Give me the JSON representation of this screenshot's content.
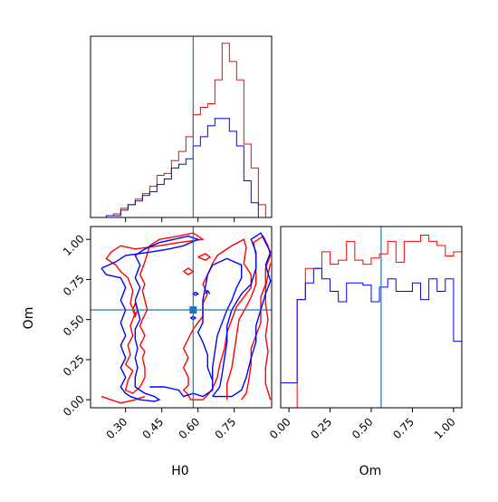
{
  "chart_data": {
    "type": "corner",
    "parameters": [
      "H0",
      "Om"
    ],
    "truth": {
      "H0": 0.58,
      "Om": 0.56
    },
    "colors": {
      "series_a": "#ff0000",
      "series_b": "#0000ff",
      "truth": "#1f77b4"
    },
    "axes": {
      "H0": {
        "xlabel": "H0",
        "ticks": [
          "0.30",
          "0.45",
          "0.60",
          "0.75"
        ],
        "tick_values": [
          0.3,
          0.45,
          0.6,
          0.75
        ],
        "xlim": [
          0.155,
          0.905
        ]
      },
      "Om": {
        "xlabel": "Om",
        "ylabel": "Om",
        "ticks": [
          "0.00",
          "0.25",
          "0.50",
          "0.75",
          "1.00"
        ],
        "tick_values": [
          0.0,
          0.25,
          0.5,
          0.75,
          1.0
        ],
        "xlim": [
          -0.05,
          1.05
        ],
        "ylim": [
          -0.05,
          1.08
        ]
      }
    },
    "histograms": {
      "H0": {
        "bin_edges": [
          0.19,
          0.22,
          0.25,
          0.28,
          0.31,
          0.34,
          0.37,
          0.4,
          0.43,
          0.46,
          0.49,
          0.52,
          0.55,
          0.58,
          0.61,
          0.64,
          0.67,
          0.7,
          0.73,
          0.76,
          0.79,
          0.82,
          0.85,
          0.88
        ],
        "series_red": [
          0,
          1,
          2,
          5,
          7,
          10,
          13,
          17,
          23,
          24,
          31,
          36,
          44,
          56,
          60,
          62,
          75,
          95,
          85,
          75,
          40,
          27,
          7
        ],
        "series_blue": [
          0,
          1,
          1,
          4,
          7,
          9,
          12,
          14,
          18,
          21,
          27,
          29,
          32,
          39,
          44,
          50,
          54,
          54,
          47,
          39,
          20,
          8,
          0
        ]
      },
      "Om": {
        "bin_edges": [
          -0.05,
          0.0,
          0.05,
          0.1,
          0.15,
          0.2,
          0.25,
          0.3,
          0.35,
          0.4,
          0.45,
          0.5,
          0.55,
          0.6,
          0.65,
          0.7,
          0.75,
          0.8,
          0.85,
          0.9,
          0.95,
          1.0,
          1.05
        ],
        "series_red": [
          0,
          0,
          52,
          67,
          67,
          75,
          69,
          71,
          80,
          71,
          69,
          72,
          74,
          80,
          70,
          80,
          80,
          83,
          80,
          78,
          73,
          75,
          0
        ],
        "series_blue": [
          12,
          12,
          52,
          60,
          67,
          62,
          56,
          51,
          60,
          60,
          59,
          51,
          58,
          62,
          56,
          56,
          60,
          52,
          62,
          56,
          62,
          32,
          12
        ]
      }
    },
    "contours": {
      "red": [
        [
          [
            0.57,
            0.0
          ],
          [
            0.56,
            0.03
          ],
          [
            0.54,
            0.06
          ],
          [
            0.56,
            0.09
          ],
          [
            0.56,
            0.14
          ],
          [
            0.54,
            0.2
          ],
          [
            0.56,
            0.26
          ],
          [
            0.54,
            0.32
          ],
          [
            0.56,
            0.38
          ],
          [
            0.58,
            0.44
          ],
          [
            0.62,
            0.52
          ],
          [
            0.62,
            0.6
          ],
          [
            0.64,
            0.66
          ],
          [
            0.62,
            0.72
          ],
          [
            0.64,
            0.78
          ],
          [
            0.66,
            0.85
          ],
          [
            0.68,
            0.9
          ],
          [
            0.74,
            0.96
          ],
          [
            0.79,
            1.0
          ],
          [
            0.8,
            0.95
          ],
          [
            0.79,
            0.85
          ],
          [
            0.82,
            0.78
          ],
          [
            0.82,
            0.7
          ],
          [
            0.79,
            0.64
          ],
          [
            0.76,
            0.58
          ],
          [
            0.74,
            0.5
          ],
          [
            0.72,
            0.42
          ],
          [
            0.71,
            0.32
          ],
          [
            0.69,
            0.22
          ],
          [
            0.68,
            0.14
          ],
          [
            0.66,
            0.07
          ],
          [
            0.64,
            0.03
          ],
          [
            0.62,
            0.0
          ],
          [
            0.57,
            0.0
          ]
        ],
        [
          [
            0.72,
            0.0
          ],
          [
            0.72,
            0.1
          ],
          [
            0.74,
            0.2
          ],
          [
            0.75,
            0.3
          ],
          [
            0.76,
            0.4
          ],
          [
            0.77,
            0.5
          ],
          [
            0.8,
            0.58
          ],
          [
            0.82,
            0.64
          ],
          [
            0.84,
            0.72
          ],
          [
            0.84,
            0.8
          ],
          [
            0.84,
            0.9
          ],
          [
            0.83,
            0.98
          ],
          [
            0.87,
            1.02
          ],
          [
            0.89,
            0.96
          ],
          [
            0.9,
            0.9
          ],
          [
            0.88,
            0.82
          ],
          [
            0.88,
            0.72
          ],
          [
            0.86,
            0.64
          ],
          [
            0.86,
            0.56
          ],
          [
            0.86,
            0.48
          ],
          [
            0.84,
            0.4
          ],
          [
            0.82,
            0.32
          ],
          [
            0.82,
            0.22
          ],
          [
            0.81,
            0.12
          ],
          [
            0.8,
            0.04
          ],
          [
            0.78,
            0.0
          ]
        ],
        [
          [
            0.9,
            0.0
          ],
          [
            0.88,
            0.1
          ],
          [
            0.88,
            0.2
          ],
          [
            0.89,
            0.3
          ],
          [
            0.88,
            0.4
          ],
          [
            0.89,
            0.5
          ],
          [
            0.88,
            0.6
          ],
          [
            0.88,
            0.7
          ],
          [
            0.89,
            0.78
          ],
          [
            0.9,
            0.85
          ]
        ],
        [
          [
            0.24,
            0.92
          ],
          [
            0.22,
            0.88
          ],
          [
            0.26,
            0.84
          ],
          [
            0.28,
            0.8
          ],
          [
            0.31,
            0.76
          ],
          [
            0.33,
            0.68
          ],
          [
            0.32,
            0.6
          ],
          [
            0.34,
            0.54
          ],
          [
            0.32,
            0.46
          ],
          [
            0.33,
            0.4
          ],
          [
            0.31,
            0.34
          ],
          [
            0.32,
            0.28
          ],
          [
            0.3,
            0.22
          ],
          [
            0.33,
            0.18
          ],
          [
            0.31,
            0.12
          ],
          [
            0.3,
            0.06
          ],
          [
            0.33,
            0.04
          ],
          [
            0.36,
            0.08
          ],
          [
            0.38,
            0.14
          ],
          [
            0.38,
            0.2
          ],
          [
            0.37,
            0.26
          ],
          [
            0.38,
            0.3
          ],
          [
            0.36,
            0.34
          ],
          [
            0.38,
            0.4
          ],
          [
            0.36,
            0.46
          ],
          [
            0.37,
            0.5
          ],
          [
            0.39,
            0.56
          ],
          [
            0.38,
            0.62
          ],
          [
            0.37,
            0.68
          ],
          [
            0.38,
            0.72
          ],
          [
            0.36,
            0.78
          ],
          [
            0.38,
            0.86
          ],
          [
            0.4,
            0.96
          ],
          [
            0.44,
            1.0
          ],
          [
            0.52,
            1.02
          ],
          [
            0.58,
            1.04
          ],
          [
            0.62,
            1.0
          ],
          [
            0.52,
            0.98
          ],
          [
            0.44,
            0.96
          ],
          [
            0.34,
            0.94
          ],
          [
            0.28,
            0.96
          ],
          [
            0.24,
            0.92
          ]
        ],
        [
          [
            0.2,
            0.02
          ],
          [
            0.24,
            0.0
          ],
          [
            0.28,
            -0.02
          ],
          [
            0.34,
            0.0
          ],
          [
            0.38,
            0.02
          ]
        ],
        [
          [
            0.33,
            0.56
          ],
          [
            0.34,
            0.52
          ],
          [
            0.35,
            0.56
          ],
          [
            0.34,
            0.6
          ],
          [
            0.33,
            0.56
          ]
        ],
        [
          [
            0.54,
            0.8
          ],
          [
            0.56,
            0.78
          ],
          [
            0.58,
            0.8
          ],
          [
            0.56,
            0.82
          ],
          [
            0.54,
            0.8
          ]
        ],
        [
          [
            0.6,
            0.89
          ],
          [
            0.63,
            0.87
          ],
          [
            0.65,
            0.89
          ],
          [
            0.63,
            0.91
          ],
          [
            0.6,
            0.89
          ]
        ]
      ],
      "blue": [
        [
          [
            0.4,
            0.08
          ],
          [
            0.46,
            0.08
          ],
          [
            0.52,
            0.06
          ],
          [
            0.54,
            0.02
          ],
          [
            0.58,
            0.04
          ],
          [
            0.62,
            0.02
          ],
          [
            0.66,
            0.06
          ],
          [
            0.66,
            0.12
          ],
          [
            0.64,
            0.2
          ],
          [
            0.64,
            0.28
          ],
          [
            0.62,
            0.36
          ],
          [
            0.6,
            0.42
          ],
          [
            0.62,
            0.48
          ],
          [
            0.62,
            0.56
          ],
          [
            0.62,
            0.62
          ],
          [
            0.63,
            0.7
          ],
          [
            0.64,
            0.78
          ],
          [
            0.66,
            0.84
          ],
          [
            0.72,
            0.88
          ],
          [
            0.78,
            0.84
          ],
          [
            0.78,
            0.76
          ],
          [
            0.76,
            0.7
          ],
          [
            0.74,
            0.62
          ],
          [
            0.72,
            0.56
          ],
          [
            0.7,
            0.48
          ],
          [
            0.68,
            0.4
          ],
          [
            0.67,
            0.3
          ],
          [
            0.66,
            0.2
          ],
          [
            0.66,
            0.12
          ]
        ],
        [
          [
            0.66,
            0.02
          ],
          [
            0.69,
            0.08
          ],
          [
            0.7,
            0.16
          ],
          [
            0.71,
            0.26
          ],
          [
            0.72,
            0.36
          ],
          [
            0.72,
            0.46
          ],
          [
            0.74,
            0.56
          ],
          [
            0.78,
            0.66
          ],
          [
            0.82,
            0.72
          ],
          [
            0.84,
            0.82
          ],
          [
            0.84,
            0.92
          ],
          [
            0.82,
            1.0
          ],
          [
            0.86,
            1.04
          ],
          [
            0.88,
            0.98
          ],
          [
            0.9,
            0.92
          ],
          [
            0.88,
            0.84
          ],
          [
            0.9,
            0.74
          ],
          [
            0.88,
            0.66
          ],
          [
            0.86,
            0.56
          ],
          [
            0.84,
            0.46
          ],
          [
            0.84,
            0.36
          ],
          [
            0.82,
            0.26
          ],
          [
            0.8,
            0.14
          ],
          [
            0.78,
            0.06
          ],
          [
            0.74,
            0.02
          ],
          [
            0.66,
            0.02
          ]
        ],
        [
          [
            0.2,
            0.82
          ],
          [
            0.22,
            0.78
          ],
          [
            0.28,
            0.76
          ],
          [
            0.3,
            0.7
          ],
          [
            0.28,
            0.62
          ],
          [
            0.3,
            0.56
          ],
          [
            0.28,
            0.48
          ],
          [
            0.3,
            0.4
          ],
          [
            0.28,
            0.34
          ],
          [
            0.3,
            0.26
          ],
          [
            0.28,
            0.2
          ],
          [
            0.3,
            0.14
          ],
          [
            0.28,
            0.08
          ],
          [
            0.3,
            0.04
          ],
          [
            0.32,
            0.02
          ],
          [
            0.36,
            0.0
          ],
          [
            0.42,
            -0.01
          ],
          [
            0.44,
            0.0
          ],
          [
            0.42,
            0.02
          ],
          [
            0.38,
            0.04
          ],
          [
            0.34,
            0.08
          ],
          [
            0.34,
            0.14
          ],
          [
            0.35,
            0.2
          ],
          [
            0.34,
            0.26
          ],
          [
            0.35,
            0.32
          ],
          [
            0.34,
            0.38
          ],
          [
            0.34,
            0.44
          ],
          [
            0.36,
            0.5
          ],
          [
            0.35,
            0.56
          ],
          [
            0.34,
            0.62
          ],
          [
            0.36,
            0.7
          ],
          [
            0.34,
            0.76
          ],
          [
            0.36,
            0.84
          ],
          [
            0.34,
            0.9
          ],
          [
            0.38,
            0.94
          ],
          [
            0.44,
            0.98
          ],
          [
            0.5,
            1.0
          ],
          [
            0.56,
            1.02
          ],
          [
            0.6,
            1.0
          ],
          [
            0.54,
            0.96
          ],
          [
            0.48,
            0.94
          ],
          [
            0.4,
            0.92
          ],
          [
            0.3,
            0.9
          ],
          [
            0.26,
            0.86
          ],
          [
            0.2,
            0.82
          ]
        ],
        [
          [
            0.59,
            0.65
          ],
          [
            0.58,
            0.66
          ],
          [
            0.59,
            0.67
          ],
          [
            0.6,
            0.66
          ],
          [
            0.59,
            0.65
          ]
        ],
        [
          [
            0.58,
            0.5
          ],
          [
            0.57,
            0.51
          ],
          [
            0.58,
            0.52
          ],
          [
            0.59,
            0.51
          ],
          [
            0.58,
            0.5
          ]
        ],
        [
          [
            0.63,
            0.66
          ],
          [
            0.64,
            0.68
          ],
          [
            0.65,
            0.66
          ]
        ]
      ]
    }
  }
}
